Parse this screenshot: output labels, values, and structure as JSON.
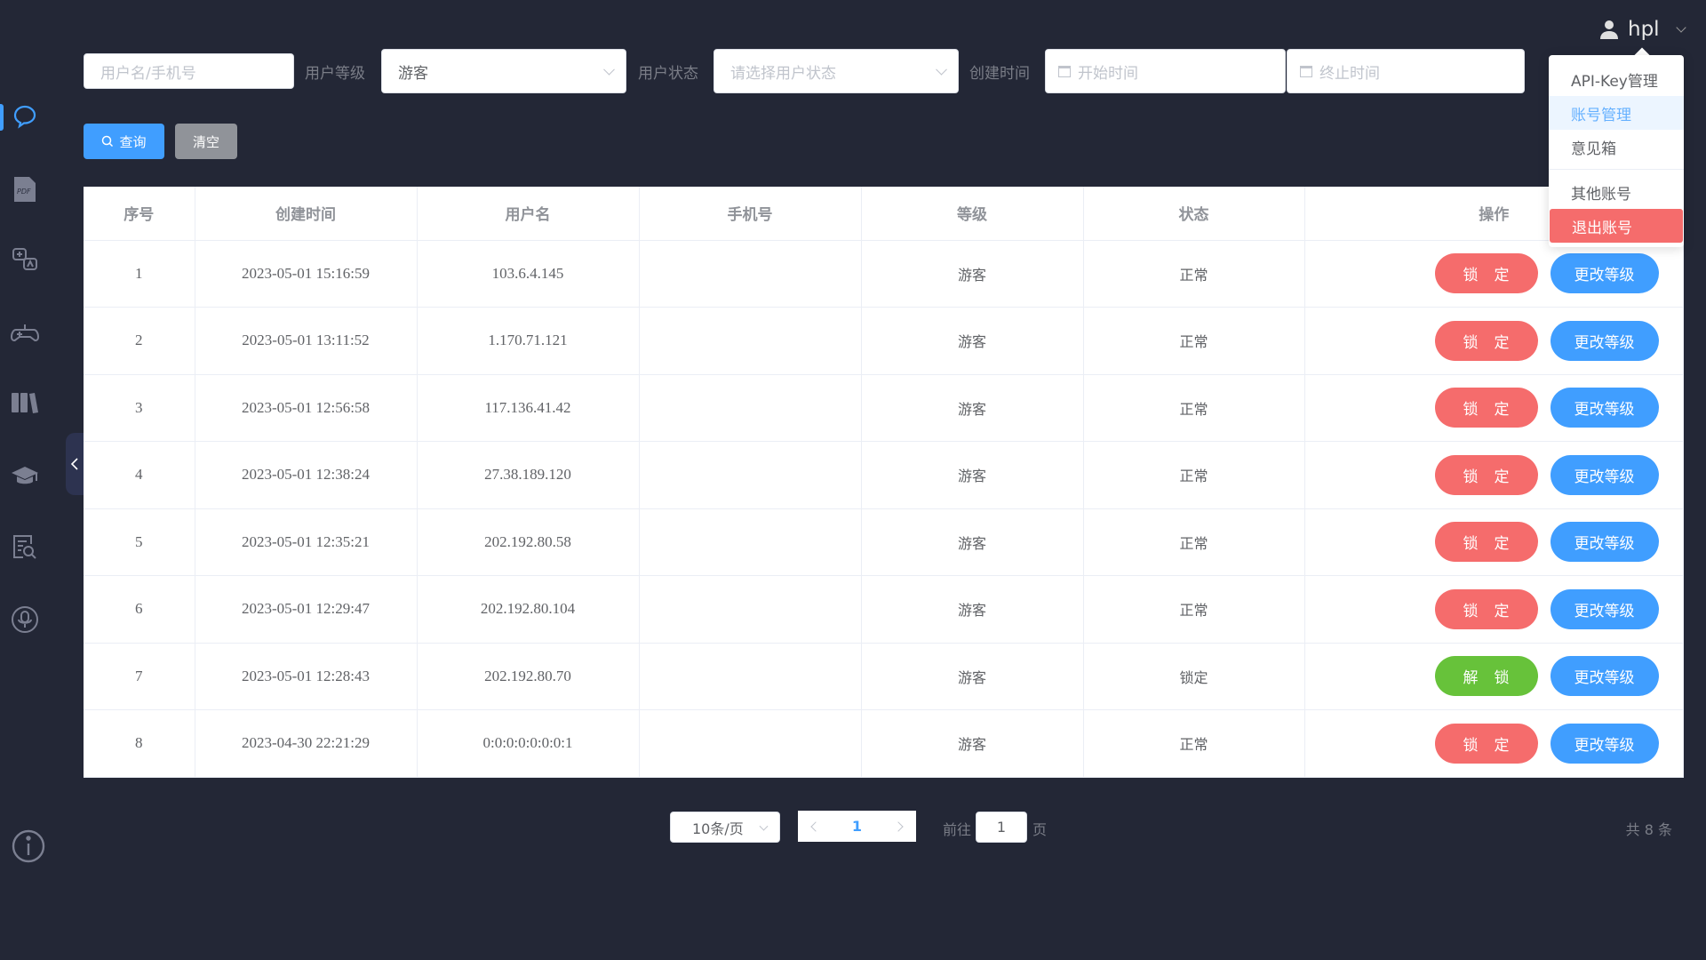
{
  "user": {
    "name": "hpl",
    "menu": [
      {
        "label": "API-Key管理"
      },
      {
        "label": "账号管理",
        "state": "hover"
      },
      {
        "label": "意见箱"
      },
      {
        "label": "其他账号"
      },
      {
        "label": "退出账号",
        "state": "danger"
      }
    ]
  },
  "sidebar": {
    "items": [
      "chat-icon",
      "pdf-icon",
      "translate-icon",
      "gamepad-icon",
      "books-icon",
      "graduation-cap-icon",
      "document-search-icon",
      "microphone-icon"
    ],
    "active": 0,
    "footer": "info-icon",
    "pdf_text": "PDF"
  },
  "filters": {
    "search_placeholder": "用户名/手机号",
    "level_label": "用户等级",
    "level_value": "游客",
    "status_label": "用户状态",
    "status_placeholder": "请选择用户状态",
    "time_label": "创建时间",
    "start_placeholder": "开始时间",
    "end_placeholder": "终止时间",
    "query": "查询",
    "clear": "清空"
  },
  "table": {
    "headers": [
      "序号",
      "创建时间",
      "用户名",
      "手机号",
      "等级",
      "状态",
      "操作"
    ],
    "rows": [
      {
        "no": "1",
        "time": "2023-05-01 15:16:59",
        "user": "103.6.4.145",
        "phone": "",
        "level": "游客",
        "status": "正常",
        "action": "锁定"
      },
      {
        "no": "2",
        "time": "2023-05-01 13:11:52",
        "user": "1.170.71.121",
        "phone": "",
        "level": "游客",
        "status": "正常",
        "action": "锁定"
      },
      {
        "no": "3",
        "time": "2023-05-01 12:56:58",
        "user": "117.136.41.42",
        "phone": "",
        "level": "游客",
        "status": "正常",
        "action": "锁定"
      },
      {
        "no": "4",
        "time": "2023-05-01 12:38:24",
        "user": "27.38.189.120",
        "phone": "",
        "level": "游客",
        "status": "正常",
        "action": "锁定"
      },
      {
        "no": "5",
        "time": "2023-05-01 12:35:21",
        "user": "202.192.80.58",
        "phone": "",
        "level": "游客",
        "status": "正常",
        "action": "锁定"
      },
      {
        "no": "6",
        "time": "2023-05-01 12:29:47",
        "user": "202.192.80.104",
        "phone": "",
        "level": "游客",
        "status": "正常",
        "action": "锁定"
      },
      {
        "no": "7",
        "time": "2023-05-01 12:28:43",
        "user": "202.192.80.70",
        "phone": "",
        "level": "游客",
        "status": "锁定",
        "action": "解锁"
      },
      {
        "no": "8",
        "time": "2023-04-30 22:21:29",
        "user": "0:0:0:0:0:0:0:1",
        "phone": "",
        "level": "游客",
        "status": "正常",
        "action": "锁定"
      }
    ],
    "change_level": "更改等级"
  },
  "pagination": {
    "page_size": "10条/页",
    "current": "1",
    "goto_label": "前往",
    "goto_value": "1",
    "page_suffix": "页",
    "total": "共 8 条"
  },
  "colors": {
    "primary": "#409eff",
    "danger": "#f56c6c",
    "success": "#67c23a",
    "bg": "#232736"
  }
}
